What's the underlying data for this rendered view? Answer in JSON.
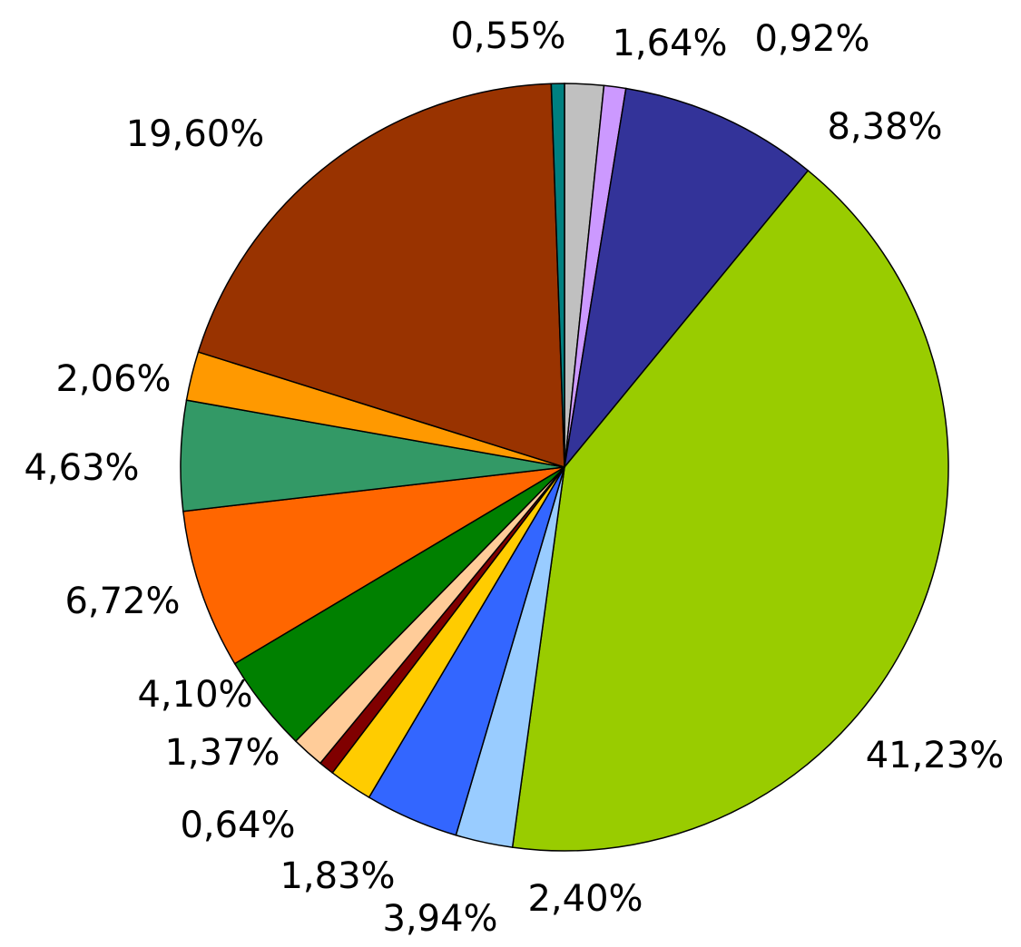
{
  "chart_data": {
    "type": "pie",
    "values": [
      1.64,
      0.92,
      8.38,
      41.23,
      2.4,
      3.94,
      1.83,
      0.64,
      1.37,
      4.1,
      6.72,
      4.63,
      2.06,
      19.6,
      0.55
    ],
    "value_labels": [
      "1,64%",
      "0,92%",
      "8,38%",
      "41,23%",
      "2,40%",
      "3,94%",
      "1,83%",
      "0,64%",
      "1,37%",
      "4,10%",
      "6,72%",
      "4,63%",
      "2,06%",
      "19,60%",
      "0,55%"
    ],
    "colors": [
      "#c0c0c0",
      "#cc99ff",
      "#333399",
      "#99cc00",
      "#99ccff",
      "#3366ff",
      "#ffcc00",
      "#800000",
      "#ffcc99",
      "#008000",
      "#ff6600",
      "#339966",
      "#ff9900",
      "#993300",
      "#008080"
    ]
  }
}
